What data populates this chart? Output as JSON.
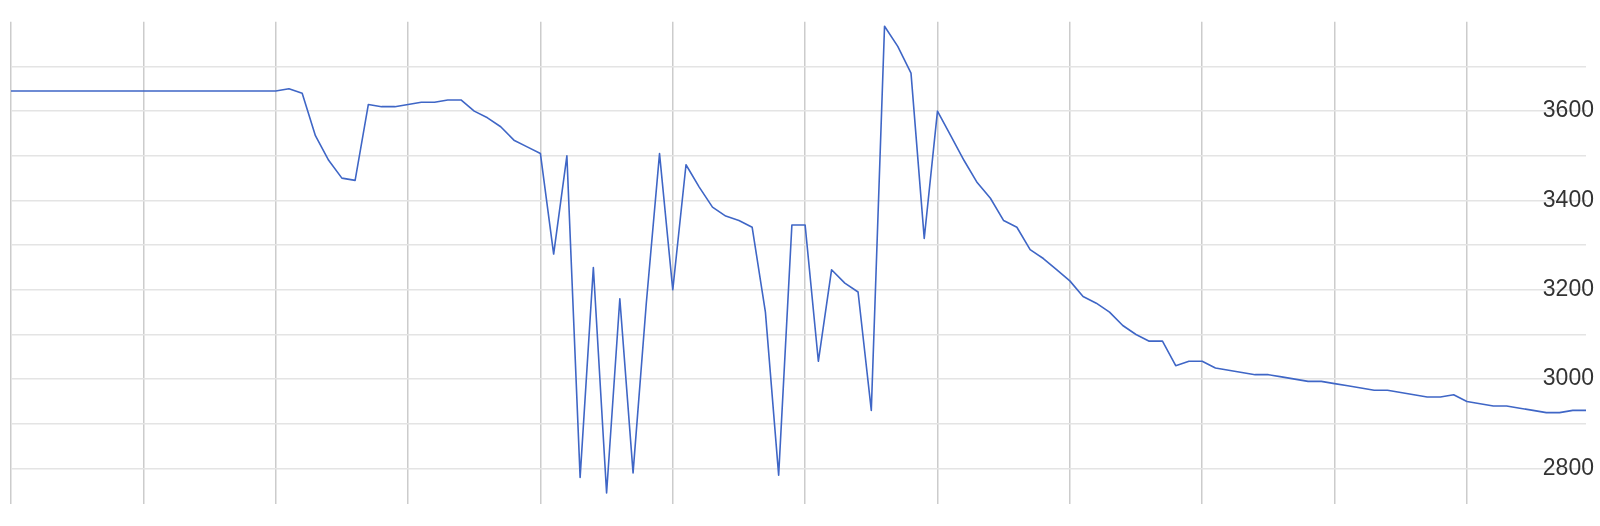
{
  "chart_data": {
    "type": "line",
    "categories": [
      null,
      null,
      null,
      null,
      null,
      null,
      null,
      null,
      null,
      null,
      null,
      null,
      null,
      null,
      null,
      null,
      null,
      null,
      null,
      null,
      null,
      null,
      null,
      null,
      null,
      null,
      null,
      null,
      null,
      null,
      null,
      null,
      null,
      null,
      null,
      null,
      null,
      null,
      null,
      null,
      null,
      null,
      null,
      null,
      null,
      null,
      null,
      null,
      null,
      null,
      null,
      null,
      null,
      null,
      null,
      null,
      null,
      null,
      null,
      null,
      null,
      null,
      null,
      null,
      null,
      null,
      null,
      null,
      null,
      null,
      null,
      null,
      null,
      null,
      null,
      null,
      null,
      null,
      null,
      null,
      null,
      null,
      null,
      null,
      null,
      null,
      null,
      null,
      null,
      null,
      null,
      null,
      null,
      null,
      null,
      null,
      null,
      null,
      null,
      null,
      null,
      null,
      null,
      null,
      null,
      null,
      null,
      null,
      null,
      null,
      null,
      null,
      null,
      null,
      null,
      null,
      null,
      null,
      null,
      null
    ],
    "series": [
      {
        "color": "#3f66c6",
        "values": [
          3645,
          3645,
          3645,
          3645,
          3645,
          3645,
          3645,
          3645,
          3645,
          3645,
          3645,
          3645,
          3645,
          3645,
          3645,
          3645,
          3645,
          3645,
          3645,
          3645,
          3645,
          3650,
          3640,
          3545,
          3490,
          3450,
          3445,
          3615,
          3610,
          3610,
          3615,
          3620,
          3620,
          3625,
          3625,
          3600,
          3585,
          3565,
          3535,
          3520,
          3505,
          3280,
          3500,
          2780,
          3250,
          2745,
          3180,
          2790,
          3170,
          3505,
          3200,
          3480,
          3430,
          3385,
          3365,
          3355,
          3340,
          3150,
          2785,
          3345,
          3345,
          3040,
          3245,
          3215,
          3195,
          2930,
          3790,
          3745,
          3685,
          3315,
          3600,
          3545,
          3490,
          3440,
          3405,
          3355,
          3340,
          3290,
          3270,
          3245,
          3220,
          3185,
          3170,
          3150,
          3120,
          3100,
          3085,
          3085,
          3030,
          3040,
          3040,
          3025,
          3020,
          3015,
          3010,
          3010,
          3005,
          3000,
          2995,
          2995,
          2990,
          2985,
          2980,
          2975,
          2975,
          2970,
          2965,
          2960,
          2960,
          2965,
          2950,
          2945,
          2940,
          2940,
          2935,
          2930,
          2925,
          2925,
          2930,
          2930
        ]
      }
    ],
    "ylim": [
      2720,
      3800
    ],
    "yticks": [
      2800,
      {
        "value": 2900,
        "label": null
      },
      3000,
      {
        "value": 3100,
        "label": null
      },
      3200,
      {
        "value": 3300,
        "label": null
      },
      3400,
      {
        "value": 3500,
        "label": null
      },
      3600,
      {
        "value": 3700,
        "label": null
      }
    ],
    "tick_labels": "y",
    "grid": true,
    "legend": false,
    "marker": "none",
    "line_style": "solid"
  }
}
